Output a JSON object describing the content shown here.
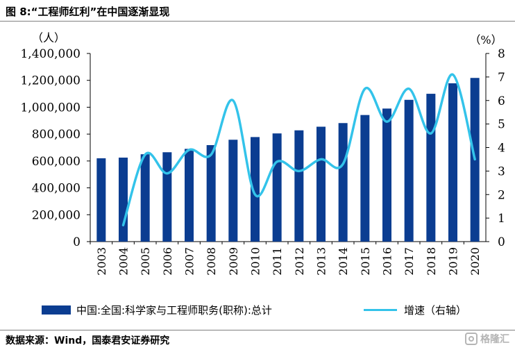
{
  "title": "图 8:“工程师红利”在中国逐渐显现",
  "legend": {
    "bar_label": "中国:全国:科学家与工程师职务(职称):总计",
    "line_label": "增速（右轴）"
  },
  "source": "数据来源：Wind，国泰君安证券研究",
  "watermark": "格隆汇",
  "colors": {
    "bar": "#0b3d91",
    "line": "#33c3ea"
  },
  "chart_data": {
    "type": "bar",
    "categories": [
      "2003",
      "2004",
      "2005",
      "2006",
      "2007",
      "2008",
      "2009",
      "2010",
      "2011",
      "2012",
      "2013",
      "2014",
      "2015",
      "2016",
      "2017",
      "2018",
      "2019",
      "2020"
    ],
    "series": [
      {
        "name": "中国:全国:科学家与工程师职务(职称):总计",
        "type": "bar",
        "axis": "left",
        "values": [
          620000,
          625000,
          650000,
          665000,
          690000,
          718000,
          758000,
          778000,
          805000,
          828000,
          855000,
          882000,
          942000,
          990000,
          1055000,
          1100000,
          1178000,
          1218000
        ]
      },
      {
        "name": "增速（右轴）",
        "type": "line",
        "axis": "right",
        "values": [
          null,
          0.7,
          3.7,
          2.9,
          3.9,
          3.7,
          6.0,
          2.0,
          3.4,
          3.0,
          3.5,
          3.3,
          6.5,
          5.1,
          6.5,
          4.6,
          7.1,
          3.5
        ]
      }
    ],
    "y_left": {
      "unit": "（人）",
      "lim": [
        0,
        1400000
      ],
      "ticks": [
        0,
        200000,
        400000,
        600000,
        800000,
        1000000,
        1200000,
        1400000
      ],
      "tick_labels": [
        "0",
        "200,000",
        "400,000",
        "600,000",
        "800,000",
        "1,000,000",
        "1,200,000",
        "1,400,000"
      ]
    },
    "y_right": {
      "unit": "（%）",
      "lim": [
        0,
        8
      ],
      "ticks": [
        0,
        1,
        2,
        3,
        4,
        5,
        6,
        7,
        8
      ],
      "tick_labels": [
        "0",
        "1",
        "2",
        "3",
        "4",
        "5",
        "6",
        "7",
        "8"
      ]
    },
    "grid": false,
    "legend_position": "bottom"
  }
}
